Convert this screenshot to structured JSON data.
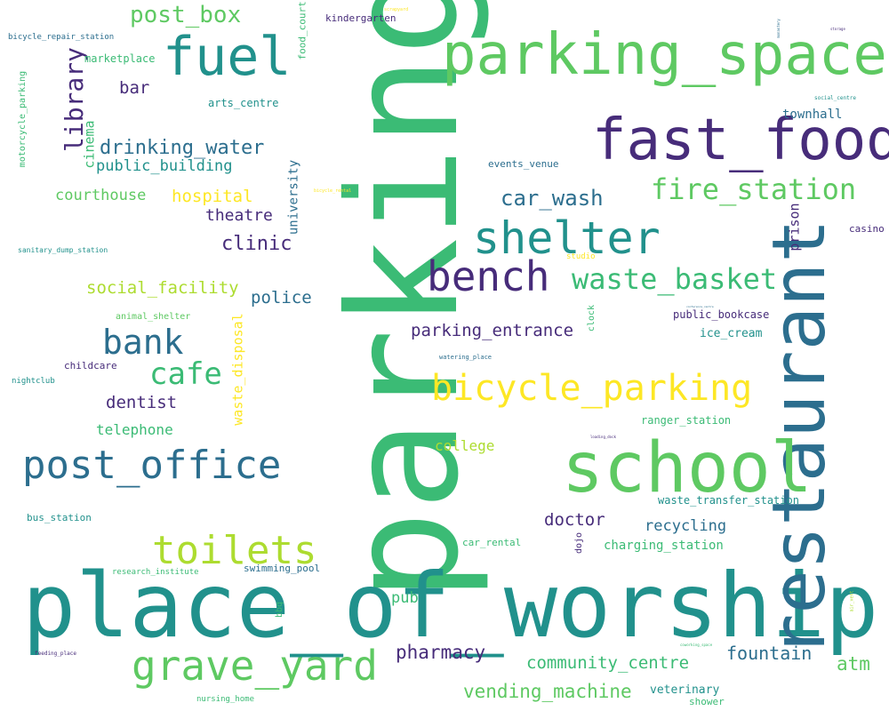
{
  "palette": {
    "background": "#ffffff",
    "dark_purple": "#472c7a",
    "blue": "#2c6e8e",
    "teal": "#21918c",
    "green": "#3bbb75",
    "light_green": "#5ec962",
    "yellow_green": "#addc30",
    "yellow": "#fde725"
  },
  "words": [
    {
      "key": "parking",
      "text": "parking",
      "color": "#3bbb75"
    },
    {
      "key": "place_of_worship",
      "text": "place_of_worship",
      "color": "#21918c"
    },
    {
      "key": "restaurant",
      "text": "restaurant",
      "color": "#2c6e8e"
    },
    {
      "key": "school",
      "text": "school",
      "color": "#5ec962"
    },
    {
      "key": "parking_space",
      "text": "parking_space",
      "color": "#5ec962"
    },
    {
      "key": "fast_food",
      "text": "fast_food",
      "color": "#472c7a"
    },
    {
      "key": "fuel",
      "text": "fuel",
      "color": "#21918c"
    },
    {
      "key": "shelter",
      "text": "shelter",
      "color": "#21918c"
    },
    {
      "key": "bench",
      "text": "bench",
      "color": "#472c7a"
    },
    {
      "key": "post_office",
      "text": "post_office",
      "color": "#2c6e8e"
    },
    {
      "key": "grave_yard",
      "text": "grave_yard",
      "color": "#5ec962"
    },
    {
      "key": "toilets",
      "text": "toilets",
      "color": "#addc30"
    },
    {
      "key": "bicycle_parking",
      "text": "bicycle_parking",
      "color": "#fde725"
    },
    {
      "key": "waste_basket",
      "text": "waste_basket",
      "color": "#3bbb75"
    },
    {
      "key": "fire_station",
      "text": "fire_station",
      "color": "#5ec962"
    },
    {
      "key": "bank",
      "text": "bank",
      "color": "#2c6e8e"
    },
    {
      "key": "cafe",
      "text": "cafe",
      "color": "#3bbb75"
    },
    {
      "key": "library",
      "text": "library",
      "color": "#472c7a"
    },
    {
      "key": "post_box",
      "text": "post_box",
      "color": "#5ec962"
    },
    {
      "key": "car_wash",
      "text": "car_wash",
      "color": "#2c6e8e"
    },
    {
      "key": "drinking_water",
      "text": "drinking_water",
      "color": "#2c6e8e"
    },
    {
      "key": "public_building",
      "text": "public_building",
      "color": "#21918c"
    },
    {
      "key": "courthouse",
      "text": "courthouse",
      "color": "#5ec962"
    },
    {
      "key": "hospital",
      "text": "hospital",
      "color": "#fde725"
    },
    {
      "key": "theatre",
      "text": "theatre",
      "color": "#472c7a"
    },
    {
      "key": "clinic",
      "text": "clinic",
      "color": "#472c7a"
    },
    {
      "key": "social_facility",
      "text": "social_facility",
      "color": "#addc30"
    },
    {
      "key": "police",
      "text": "police",
      "color": "#2c6e8e"
    },
    {
      "key": "parking_entrance",
      "text": "parking_entrance",
      "color": "#472c7a"
    },
    {
      "key": "dentist",
      "text": "dentist",
      "color": "#472c7a"
    },
    {
      "key": "telephone",
      "text": "telephone",
      "color": "#3bbb75"
    },
    {
      "key": "pharmacy",
      "text": "pharmacy",
      "color": "#472c7a"
    },
    {
      "key": "community_centre",
      "text": "community_centre",
      "color": "#3bbb75"
    },
    {
      "key": "vending_machine",
      "text": "vending_machine",
      "color": "#5ec962"
    },
    {
      "key": "fountain",
      "text": "fountain",
      "color": "#2c6e8e"
    },
    {
      "key": "atm",
      "text": "atm",
      "color": "#5ec962"
    },
    {
      "key": "doctor",
      "text": "doctor",
      "color": "#472c7a"
    },
    {
      "key": "recycling",
      "text": "recycling",
      "color": "#2c6e8e"
    },
    {
      "key": "charging_station",
      "text": "charging_station",
      "color": "#3bbb75"
    },
    {
      "key": "college",
      "text": "college",
      "color": "#addc30"
    },
    {
      "key": "pub",
      "text": "pub",
      "color": "#3bbb75"
    },
    {
      "key": "bar",
      "text": "bar",
      "color": "#472c7a"
    },
    {
      "key": "cinema",
      "text": "cinema",
      "color": "#3bbb75"
    },
    {
      "key": "waste_disposal",
      "text": "waste_disposal",
      "color": "#fde725"
    },
    {
      "key": "university",
      "text": "university",
      "color": "#2c6e8e"
    },
    {
      "key": "prison",
      "text": "prison",
      "color": "#472c7a"
    },
    {
      "key": "townhall",
      "text": "townhall",
      "color": "#2c6e8e"
    },
    {
      "key": "ice_cream",
      "text": "ice_cream",
      "color": "#21918c"
    },
    {
      "key": "public_bookcase",
      "text": "public_bookcase",
      "color": "#472c7a"
    },
    {
      "key": "ranger_station",
      "text": "ranger_station",
      "color": "#3bbb75"
    },
    {
      "key": "waste_transfer_station",
      "text": "waste_transfer_station",
      "color": "#21918c"
    },
    {
      "key": "veterinary",
      "text": "veterinary",
      "color": "#21918c"
    },
    {
      "key": "shower",
      "text": "shower",
      "color": "#3bbb75"
    },
    {
      "key": "swimming_pool",
      "text": "swimming_pool",
      "color": "#2c6e8e"
    },
    {
      "key": "car_rental",
      "text": "car_rental",
      "color": "#3bbb75"
    },
    {
      "key": "events_venue",
      "text": "events_venue",
      "color": "#2c6e8e"
    },
    {
      "key": "arts_centre",
      "text": "arts_centre",
      "color": "#21918c"
    },
    {
      "key": "marketplace",
      "text": "marketplace",
      "color": "#3bbb75"
    },
    {
      "key": "kindergarten",
      "text": "kindergarten",
      "color": "#472c7a"
    },
    {
      "key": "food_court",
      "text": "food_court",
      "color": "#3bbb75"
    },
    {
      "key": "bicycle_repair_station",
      "text": "bicycle_repair_station",
      "color": "#2c6e8e"
    },
    {
      "key": "motorcycle_parking",
      "text": "motorcycle_parking",
      "color": "#3bbb75"
    },
    {
      "key": "sanitary_dump_station",
      "text": "sanitary_dump_station",
      "color": "#21918c"
    },
    {
      "key": "animal_shelter",
      "text": "animal_shelter",
      "color": "#5ec962"
    },
    {
      "key": "childcare",
      "text": "childcare",
      "color": "#472c7a"
    },
    {
      "key": "nightclub",
      "text": "nightclub",
      "color": "#21918c"
    },
    {
      "key": "bus_station",
      "text": "bus_station",
      "color": "#21918c"
    },
    {
      "key": "research_institute",
      "text": "research_institute",
      "color": "#3bbb75"
    },
    {
      "key": "feeding_place",
      "text": "feeding_place",
      "color": "#472c7a"
    },
    {
      "key": "nursing_home",
      "text": "nursing_home",
      "color": "#3bbb75"
    },
    {
      "key": "bbq",
      "text": "bbq",
      "color": "#3bbb75"
    },
    {
      "key": "dojo",
      "text": "dojo",
      "color": "#472c7a"
    },
    {
      "key": "clock",
      "text": "clock",
      "color": "#3bbb75"
    },
    {
      "key": "casino",
      "text": "casino",
      "color": "#472c7a"
    },
    {
      "key": "studio",
      "text": "studio",
      "color": "#fde725"
    },
    {
      "key": "watering_place",
      "text": "watering_place",
      "color": "#2c6e8e"
    },
    {
      "key": "bicycle_rental",
      "text": "bicycle_rental",
      "color": "#fde725"
    },
    {
      "key": "social_centre",
      "text": "social_centre",
      "color": "#21918c"
    },
    {
      "key": "scrapyard",
      "text": "scrapyard",
      "color": "#fde725"
    },
    {
      "key": "storage",
      "text": "storage",
      "color": "#472c7a"
    },
    {
      "key": "monastery",
      "text": "monastery",
      "color": "#2c6e8e"
    },
    {
      "key": "conference_centre",
      "text": "conference_centre",
      "color": "#2c6e8e"
    },
    {
      "key": "loading_dock",
      "text": "loading_dock",
      "color": "#472c7a"
    },
    {
      "key": "coworking_space",
      "text": "coworking_space",
      "color": "#3bbb75"
    },
    {
      "key": "air_vent",
      "text": "air_vent",
      "color": "#addc30"
    }
  ]
}
